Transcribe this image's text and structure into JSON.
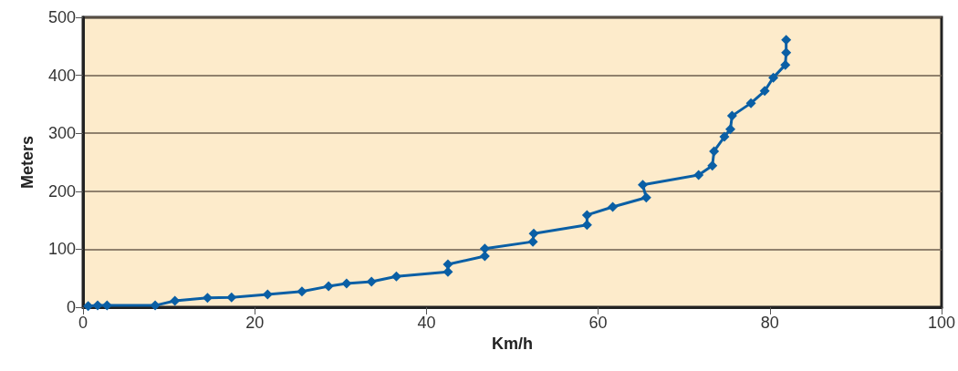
{
  "chart_data": {
    "type": "line",
    "xlabel": "Km/h",
    "ylabel": "Meters",
    "x": [
      0.6,
      1.7,
      2.8,
      8.4,
      10.7,
      14.5,
      17.3,
      21.5,
      25.5,
      28.6,
      30.7,
      33.6,
      36.5,
      42.5,
      42.5,
      46.8,
      46.8,
      52.4,
      52.5,
      58.7,
      58.7,
      61.7,
      65.6,
      65.2,
      71.7,
      73.3,
      73.5,
      74.7,
      75.4,
      75.6,
      77.8,
      79.4,
      80.4,
      81.8,
      81.9,
      81.9
    ],
    "series": [
      {
        "color": "#0a5fa5",
        "values": [
          2,
          3,
          3,
          3,
          11,
          16,
          17,
          22,
          27,
          36,
          41,
          44,
          53,
          61,
          74,
          88,
          101,
          113,
          127,
          142,
          159,
          173,
          189,
          211,
          228,
          244,
          269,
          294,
          307,
          330,
          352,
          373,
          396,
          418,
          439,
          461
        ]
      }
    ],
    "xlim": [
      0,
      100
    ],
    "xticks": [
      0,
      20,
      40,
      60,
      80,
      100
    ],
    "ylim": [
      0,
      500
    ],
    "yticks": [
      0,
      100,
      200,
      300,
      400,
      500
    ],
    "grid": "y",
    "marker": "diamond",
    "line_style": "solid"
  }
}
